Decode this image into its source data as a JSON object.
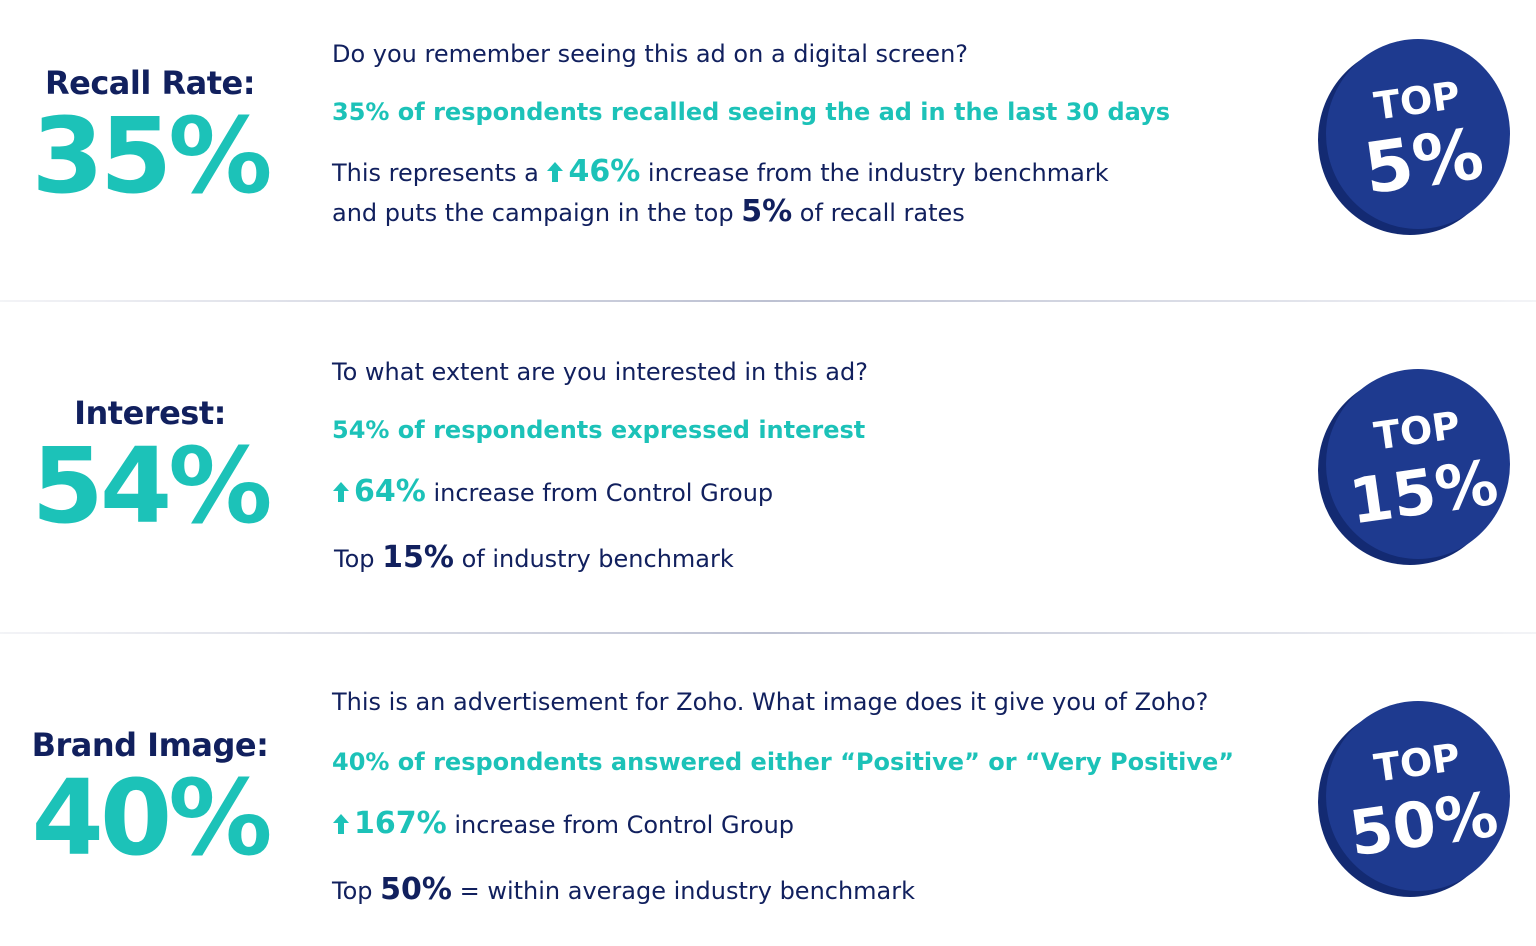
{
  "sections": [
    {
      "label": "Recall Rate:",
      "value": "35%",
      "question": "Do you remember seeing this ad on a digital screen?",
      "finding": "35% of respondents recalled seeing the ad in the last 30 days",
      "line3_pre": "This represents a ",
      "line3_stat": "46%",
      "line3_post": " increase from the industry benchmark",
      "line4_pre": "and puts the campaign in the top ",
      "line4_stat": "5%",
      "line4_post": " of recall rates",
      "badge_top": "TOP",
      "badge_value": "5%"
    },
    {
      "label": "Interest:",
      "value": "54%",
      "question": "To what extent are you interested in this ad?",
      "finding": "54% of respondents expressed interest",
      "line3_stat": "64%",
      "line3_post": " increase from Control Group",
      "line4_pre": "Top ",
      "line4_stat": "15%",
      "line4_post": " of industry benchmark",
      "badge_top": "TOP",
      "badge_value": "15%"
    },
    {
      "label": "Brand Image:",
      "value": "40%",
      "question": "This is an advertisement for Zoho. What image does it give you of Zoho?",
      "finding": "40% of respondents answered either “Positive” or “Very Positive”",
      "line3_stat": "167%",
      "line3_post": " increase from Control Group",
      "line4_pre": "Top ",
      "line4_stat": "50%",
      "line4_post": " = within average industry benchmark",
      "badge_top": "TOP",
      "badge_value": "50%"
    }
  ],
  "colors": {
    "navy": "#11205e",
    "teal": "#1cc2b8",
    "badge_face": "#1e3a8f",
    "badge_edge": "#132a72"
  },
  "icons": {
    "increase": "arrow-up-icon"
  }
}
